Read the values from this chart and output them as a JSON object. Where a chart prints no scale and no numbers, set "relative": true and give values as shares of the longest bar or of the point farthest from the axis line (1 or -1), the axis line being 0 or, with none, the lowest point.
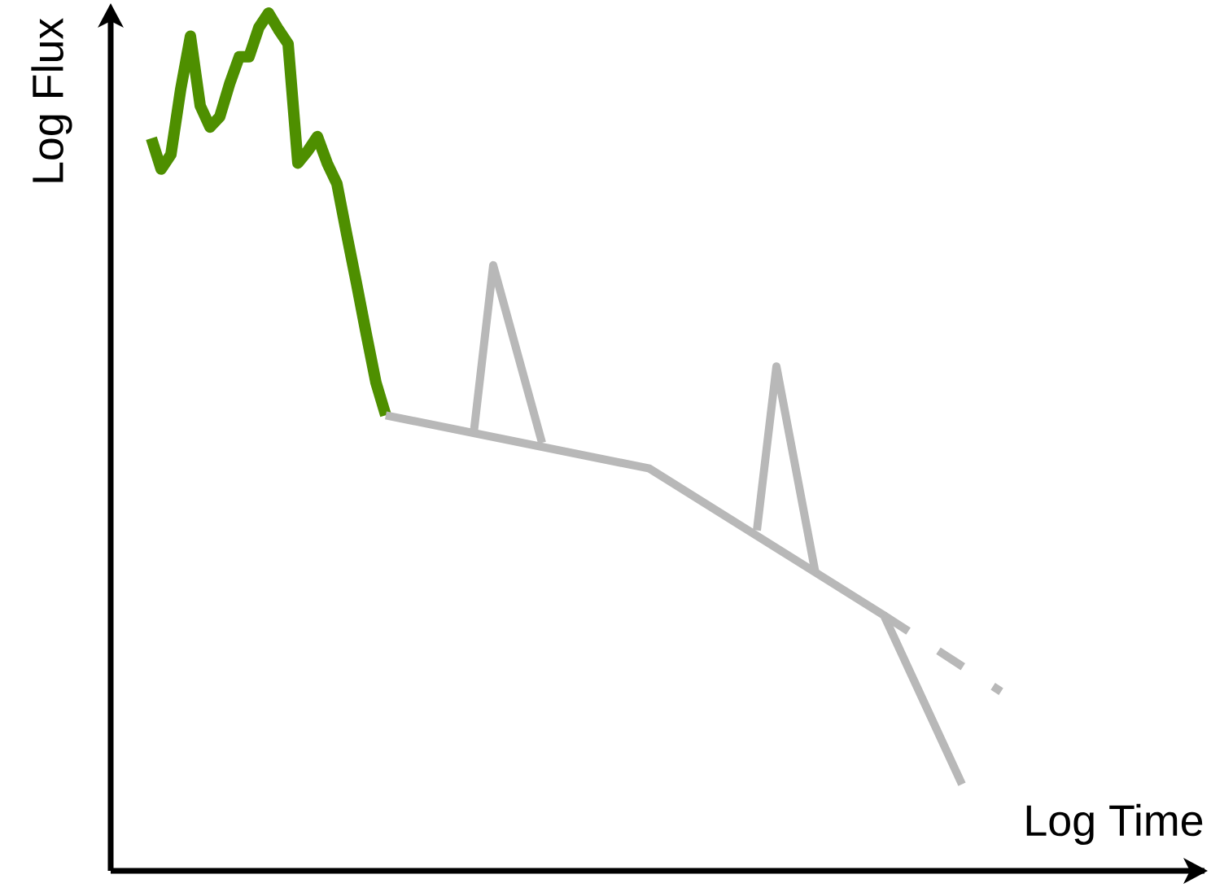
{
  "chart_data": {
    "type": "line",
    "relative": true,
    "xlabel": "Log Time",
    "ylabel": "Log Flux",
    "marker": "none",
    "categories": [
      null,
      null,
      null,
      null,
      null,
      null,
      null,
      null,
      null,
      null,
      null,
      null,
      null,
      null,
      null,
      null,
      null,
      null,
      null,
      null,
      null,
      null,
      null,
      null,
      null,
      null,
      null,
      null,
      null,
      null,
      null,
      null,
      null,
      null,
      null,
      null,
      null,
      null,
      null,
      null,
      null,
      null,
      null,
      null,
      null,
      null,
      null,
      null,
      null,
      null,
      null,
      null,
      null,
      null,
      null,
      null,
      null,
      null,
      null,
      null,
      null,
      null,
      null,
      null,
      null,
      null,
      null,
      null,
      null,
      null,
      null,
      null,
      null,
      null,
      null,
      null,
      null,
      null,
      null,
      null,
      null,
      null,
      null,
      null,
      null,
      null,
      null,
      null
    ],
    "series": [
      {
        "color": "#4e8f00",
        "line_style": "solid",
        "values": [
          0.854,
          0.818,
          0.835,
          0.911,
          0.973,
          0.892,
          0.867,
          0.879,
          0.917,
          0.949,
          0.949,
          0.983,
          1,
          0.981,
          0.964,
          0.825,
          0.839,
          0.856,
          0.825,
          0.801,
          0.742,
          0.685,
          0.626,
          0.569,
          0.531,
          null,
          null,
          null,
          null,
          null,
          null,
          null,
          null,
          null,
          null,
          null,
          null,
          null,
          null,
          null,
          null,
          null,
          null,
          null,
          null,
          null,
          null,
          null,
          null,
          null,
          null,
          null,
          null,
          null,
          null,
          null,
          null,
          null,
          null,
          null,
          null,
          null,
          null,
          null,
          null,
          null,
          null,
          null,
          null,
          null,
          null,
          null,
          null,
          null,
          null,
          null,
          null,
          null,
          null,
          null,
          null,
          null,
          null,
          null,
          null,
          null,
          null,
          null
        ]
      },
      {
        "color": "#b8b8b8",
        "line_style": "solid",
        "values": [
          null,
          null,
          null,
          null,
          null,
          null,
          null,
          null,
          null,
          null,
          null,
          null,
          null,
          null,
          null,
          null,
          null,
          null,
          null,
          null,
          null,
          null,
          null,
          null,
          0.531,
          null,
          null,
          null,
          null,
          null,
          null,
          null,
          null,
          null,
          null,
          null,
          null,
          null,
          null,
          null,
          null,
          null,
          null,
          null,
          null,
          null,
          null,
          null,
          null,
          null,
          null,
          0.469,
          null,
          null,
          null,
          null,
          null,
          null,
          null,
          null,
          null,
          null,
          null,
          null,
          null,
          null,
          null,
          null,
          null,
          null,
          null,
          null,
          null,
          null,
          null,
          0.298,
          null,
          null,
          null,
          null,
          null,
          null,
          null,
          0.101,
          null,
          null,
          null,
          null
        ]
      },
      {
        "color": "#b8b8b8",
        "line_style": "dashed",
        "values": [
          null,
          null,
          null,
          null,
          null,
          null,
          null,
          null,
          null,
          null,
          null,
          null,
          null,
          null,
          null,
          null,
          null,
          null,
          null,
          null,
          null,
          null,
          null,
          null,
          null,
          null,
          null,
          null,
          null,
          null,
          null,
          null,
          null,
          null,
          null,
          null,
          null,
          null,
          null,
          null,
          null,
          null,
          null,
          null,
          null,
          null,
          null,
          null,
          null,
          null,
          null,
          null,
          null,
          null,
          null,
          null,
          null,
          null,
          null,
          null,
          null,
          null,
          null,
          null,
          null,
          null,
          null,
          null,
          null,
          null,
          null,
          null,
          null,
          null,
          null,
          0.298,
          null,
          null,
          null,
          null,
          null,
          null,
          null,
          null,
          null,
          null,
          null,
          0.209
        ]
      },
      {
        "color": "#b8b8b8",
        "line_style": "solid",
        "values": [
          null,
          null,
          null,
          null,
          null,
          null,
          null,
          null,
          null,
          null,
          null,
          null,
          null,
          null,
          null,
          null,
          null,
          null,
          null,
          null,
          null,
          null,
          null,
          null,
          null,
          null,
          null,
          null,
          null,
          null,
          null,
          null,
          null,
          0.51,
          null,
          0.706,
          null,
          null,
          null,
          null,
          0.499,
          null,
          null,
          null,
          null,
          null,
          null,
          null,
          null,
          null,
          null,
          null,
          null,
          null,
          null,
          null,
          null,
          null,
          null,
          null,
          null,
          null,
          null,
          null,
          null,
          null,
          null,
          null,
          null,
          null,
          null,
          null,
          null,
          null,
          null,
          null,
          null,
          null,
          null,
          null,
          null,
          null,
          null,
          null,
          null,
          null,
          null,
          null
        ]
      },
      {
        "color": "#b8b8b8",
        "line_style": "solid",
        "values": [
          null,
          null,
          null,
          null,
          null,
          null,
          null,
          null,
          null,
          null,
          null,
          null,
          null,
          null,
          null,
          null,
          null,
          null,
          null,
          null,
          null,
          null,
          null,
          null,
          null,
          null,
          null,
          null,
          null,
          null,
          null,
          null,
          null,
          null,
          null,
          null,
          null,
          null,
          null,
          null,
          null,
          null,
          null,
          null,
          null,
          null,
          null,
          null,
          null,
          null,
          null,
          null,
          null,
          null,
          null,
          null,
          null,
          null,
          null,
          null,
          null,
          null,
          0.397,
          null,
          0.588,
          null,
          null,
          null,
          0.347,
          null,
          null,
          null,
          null,
          null,
          null,
          null,
          null,
          null,
          null,
          null,
          null,
          null,
          null,
          null,
          null,
          null,
          null,
          null
        ]
      }
    ]
  }
}
